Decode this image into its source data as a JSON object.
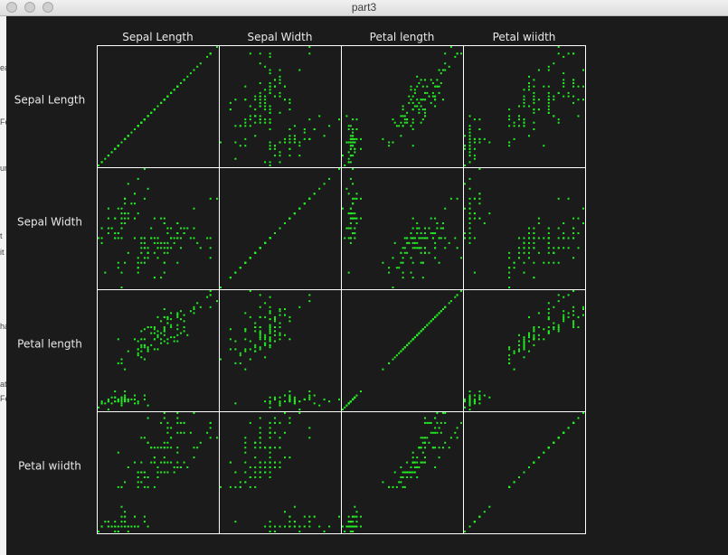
{
  "window": {
    "title": "part3"
  },
  "left_gutter_fragments": [
    "ea",
    "Fe",
    "ur",
    "t",
    "it",
    "ha",
    "at",
    "Fe"
  ],
  "colors": {
    "background": "#1b1b1b",
    "points": "#22ee22",
    "grid_lines": "#ffffff",
    "labels": "#e8e8e8"
  },
  "chart_data": {
    "type": "scatter",
    "layout": "scatter-matrix",
    "variables": [
      "Sepal Length",
      "Sepal Width",
      "Petal length",
      "Petal wiidth"
    ],
    "ranges": [
      [
        4.3,
        7.9
      ],
      [
        2.0,
        4.4
      ],
      [
        1.0,
        6.9
      ],
      [
        0.1,
        2.5
      ]
    ],
    "tick_labels": "none",
    "grid": "off",
    "legend": "none",
    "observations": [
      [
        5.1,
        3.5,
        1.4,
        0.2
      ],
      [
        4.9,
        3.0,
        1.4,
        0.2
      ],
      [
        4.7,
        3.2,
        1.3,
        0.2
      ],
      [
        4.6,
        3.1,
        1.5,
        0.2
      ],
      [
        5.0,
        3.6,
        1.4,
        0.2
      ],
      [
        5.4,
        3.9,
        1.7,
        0.4
      ],
      [
        4.6,
        3.4,
        1.4,
        0.3
      ],
      [
        5.0,
        3.4,
        1.5,
        0.2
      ],
      [
        4.4,
        2.9,
        1.4,
        0.2
      ],
      [
        4.9,
        3.1,
        1.5,
        0.1
      ],
      [
        5.4,
        3.7,
        1.5,
        0.2
      ],
      [
        4.8,
        3.4,
        1.6,
        0.2
      ],
      [
        4.8,
        3.0,
        1.4,
        0.1
      ],
      [
        4.3,
        3.0,
        1.1,
        0.1
      ],
      [
        5.8,
        4.0,
        1.2,
        0.2
      ],
      [
        5.7,
        4.4,
        1.5,
        0.4
      ],
      [
        5.4,
        3.9,
        1.3,
        0.4
      ],
      [
        5.1,
        3.5,
        1.4,
        0.3
      ],
      [
        5.7,
        3.8,
        1.7,
        0.3
      ],
      [
        5.1,
        3.8,
        1.5,
        0.3
      ],
      [
        5.4,
        3.4,
        1.7,
        0.2
      ],
      [
        5.1,
        3.7,
        1.5,
        0.4
      ],
      [
        4.6,
        3.6,
        1.0,
        0.2
      ],
      [
        5.1,
        3.3,
        1.7,
        0.5
      ],
      [
        4.8,
        3.4,
        1.9,
        0.2
      ],
      [
        5.0,
        3.0,
        1.6,
        0.2
      ],
      [
        5.0,
        3.4,
        1.6,
        0.4
      ],
      [
        5.2,
        3.5,
        1.5,
        0.2
      ],
      [
        5.2,
        3.4,
        1.4,
        0.2
      ],
      [
        4.7,
        3.2,
        1.6,
        0.2
      ],
      [
        4.8,
        3.1,
        1.6,
        0.2
      ],
      [
        5.4,
        3.4,
        1.5,
        0.4
      ],
      [
        5.2,
        4.1,
        1.5,
        0.1
      ],
      [
        5.5,
        4.2,
        1.4,
        0.2
      ],
      [
        4.9,
        3.1,
        1.5,
        0.2
      ],
      [
        5.0,
        3.2,
        1.2,
        0.2
      ],
      [
        5.5,
        3.5,
        1.3,
        0.2
      ],
      [
        4.9,
        3.6,
        1.4,
        0.1
      ],
      [
        4.4,
        3.0,
        1.3,
        0.2
      ],
      [
        5.1,
        3.4,
        1.5,
        0.2
      ],
      [
        5.0,
        3.5,
        1.3,
        0.3
      ],
      [
        4.5,
        2.3,
        1.3,
        0.3
      ],
      [
        4.4,
        3.2,
        1.3,
        0.2
      ],
      [
        5.0,
        3.5,
        1.6,
        0.6
      ],
      [
        5.1,
        3.8,
        1.9,
        0.4
      ],
      [
        4.8,
        3.0,
        1.4,
        0.3
      ],
      [
        5.1,
        3.8,
        1.6,
        0.2
      ],
      [
        4.6,
        3.2,
        1.4,
        0.2
      ],
      [
        5.3,
        3.7,
        1.5,
        0.2
      ],
      [
        5.0,
        3.3,
        1.4,
        0.2
      ],
      [
        7.0,
        3.2,
        4.7,
        1.4
      ],
      [
        6.4,
        3.2,
        4.5,
        1.5
      ],
      [
        6.9,
        3.1,
        4.9,
        1.5
      ],
      [
        5.5,
        2.3,
        4.0,
        1.3
      ],
      [
        6.5,
        2.8,
        4.6,
        1.5
      ],
      [
        5.7,
        2.8,
        4.5,
        1.3
      ],
      [
        6.3,
        3.3,
        4.7,
        1.6
      ],
      [
        4.9,
        2.4,
        3.3,
        1.0
      ],
      [
        6.6,
        2.9,
        4.6,
        1.3
      ],
      [
        5.2,
        2.7,
        3.9,
        1.4
      ],
      [
        5.0,
        2.0,
        3.5,
        1.0
      ],
      [
        5.9,
        3.0,
        4.2,
        1.5
      ],
      [
        6.0,
        2.2,
        4.0,
        1.0
      ],
      [
        6.1,
        2.9,
        4.7,
        1.4
      ],
      [
        5.6,
        2.9,
        3.6,
        1.3
      ],
      [
        6.7,
        3.1,
        4.4,
        1.4
      ],
      [
        5.6,
        3.0,
        4.5,
        1.5
      ],
      [
        5.8,
        2.7,
        4.1,
        1.0
      ],
      [
        6.2,
        2.2,
        4.5,
        1.5
      ],
      [
        5.6,
        2.5,
        3.9,
        1.1
      ],
      [
        5.9,
        3.2,
        4.8,
        1.8
      ],
      [
        6.1,
        2.8,
        4.0,
        1.3
      ],
      [
        6.3,
        2.5,
        4.9,
        1.5
      ],
      [
        6.1,
        2.8,
        4.7,
        1.2
      ],
      [
        6.4,
        2.9,
        4.3,
        1.3
      ],
      [
        6.6,
        3.0,
        4.4,
        1.4
      ],
      [
        6.8,
        2.8,
        4.8,
        1.4
      ],
      [
        6.7,
        3.0,
        5.0,
        1.7
      ],
      [
        6.0,
        2.9,
        4.5,
        1.5
      ],
      [
        5.7,
        2.6,
        3.5,
        1.0
      ],
      [
        5.5,
        2.4,
        3.8,
        1.1
      ],
      [
        5.5,
        2.4,
        3.7,
        1.0
      ],
      [
        5.8,
        2.7,
        3.9,
        1.2
      ],
      [
        6.0,
        2.7,
        5.1,
        1.6
      ],
      [
        5.4,
        3.0,
        4.5,
        1.5
      ],
      [
        6.0,
        3.4,
        4.5,
        1.6
      ],
      [
        6.7,
        3.1,
        4.7,
        1.5
      ],
      [
        6.3,
        2.3,
        4.4,
        1.3
      ],
      [
        5.6,
        3.0,
        4.1,
        1.3
      ],
      [
        5.5,
        2.5,
        4.0,
        1.3
      ],
      [
        5.5,
        2.6,
        4.4,
        1.2
      ],
      [
        6.1,
        3.0,
        4.6,
        1.4
      ],
      [
        5.8,
        2.6,
        4.0,
        1.2
      ],
      [
        5.0,
        2.3,
        3.3,
        1.0
      ],
      [
        5.6,
        2.7,
        4.2,
        1.3
      ],
      [
        5.7,
        3.0,
        4.2,
        1.2
      ],
      [
        5.7,
        2.9,
        4.2,
        1.3
      ],
      [
        6.2,
        2.9,
        4.3,
        1.3
      ],
      [
        5.1,
        2.5,
        3.0,
        1.1
      ],
      [
        5.7,
        2.8,
        4.1,
        1.3
      ],
      [
        6.3,
        3.3,
        6.0,
        2.5
      ],
      [
        5.8,
        2.7,
        5.1,
        1.9
      ],
      [
        7.1,
        3.0,
        5.9,
        2.1
      ],
      [
        6.3,
        2.9,
        5.6,
        1.8
      ],
      [
        6.5,
        3.0,
        5.8,
        2.2
      ],
      [
        7.6,
        3.0,
        6.6,
        2.1
      ],
      [
        4.9,
        2.5,
        4.5,
        1.7
      ],
      [
        7.3,
        2.9,
        6.3,
        1.8
      ],
      [
        6.7,
        2.5,
        5.8,
        1.8
      ],
      [
        7.2,
        3.6,
        6.1,
        2.5
      ],
      [
        6.5,
        3.2,
        5.1,
        2.0
      ],
      [
        6.4,
        2.7,
        5.3,
        1.9
      ],
      [
        6.8,
        3.0,
        5.5,
        2.1
      ],
      [
        5.7,
        2.5,
        5.0,
        2.0
      ],
      [
        5.8,
        2.8,
        5.1,
        2.4
      ],
      [
        6.4,
        3.2,
        5.3,
        2.3
      ],
      [
        6.5,
        3.0,
        5.5,
        1.8
      ],
      [
        7.7,
        3.8,
        6.7,
        2.2
      ],
      [
        7.7,
        2.6,
        6.9,
        2.3
      ],
      [
        6.0,
        2.2,
        5.0,
        1.5
      ],
      [
        6.9,
        3.2,
        5.7,
        2.3
      ],
      [
        5.6,
        2.8,
        4.9,
        2.0
      ],
      [
        7.7,
        2.8,
        6.7,
        2.0
      ],
      [
        6.3,
        2.7,
        4.9,
        1.8
      ],
      [
        6.7,
        3.3,
        5.7,
        2.1
      ],
      [
        7.2,
        3.2,
        6.0,
        1.8
      ],
      [
        6.2,
        2.8,
        4.8,
        1.8
      ],
      [
        6.1,
        3.0,
        4.9,
        1.8
      ],
      [
        6.4,
        2.8,
        5.6,
        2.1
      ],
      [
        7.2,
        3.0,
        5.8,
        1.6
      ],
      [
        7.4,
        2.8,
        6.1,
        1.9
      ],
      [
        7.9,
        3.8,
        6.4,
        2.0
      ],
      [
        6.4,
        2.8,
        5.6,
        2.2
      ],
      [
        6.3,
        2.8,
        5.1,
        1.5
      ],
      [
        6.1,
        2.6,
        5.6,
        1.4
      ],
      [
        7.7,
        3.0,
        6.1,
        2.3
      ],
      [
        6.3,
        3.4,
        5.6,
        2.4
      ],
      [
        6.4,
        3.1,
        5.5,
        1.8
      ],
      [
        6.0,
        3.0,
        4.8,
        1.8
      ],
      [
        6.9,
        3.1,
        5.4,
        2.1
      ],
      [
        6.7,
        3.1,
        5.6,
        2.4
      ],
      [
        6.9,
        3.1,
        5.1,
        2.3
      ],
      [
        5.8,
        2.7,
        5.1,
        1.9
      ],
      [
        6.8,
        3.2,
        5.9,
        2.3
      ],
      [
        6.7,
        3.3,
        5.7,
        2.5
      ],
      [
        6.7,
        3.0,
        5.2,
        2.3
      ],
      [
        6.3,
        2.5,
        5.0,
        1.9
      ],
      [
        6.5,
        3.0,
        5.2,
        2.0
      ],
      [
        6.2,
        3.4,
        5.4,
        2.3
      ],
      [
        5.9,
        3.0,
        5.1,
        1.8
      ]
    ]
  }
}
